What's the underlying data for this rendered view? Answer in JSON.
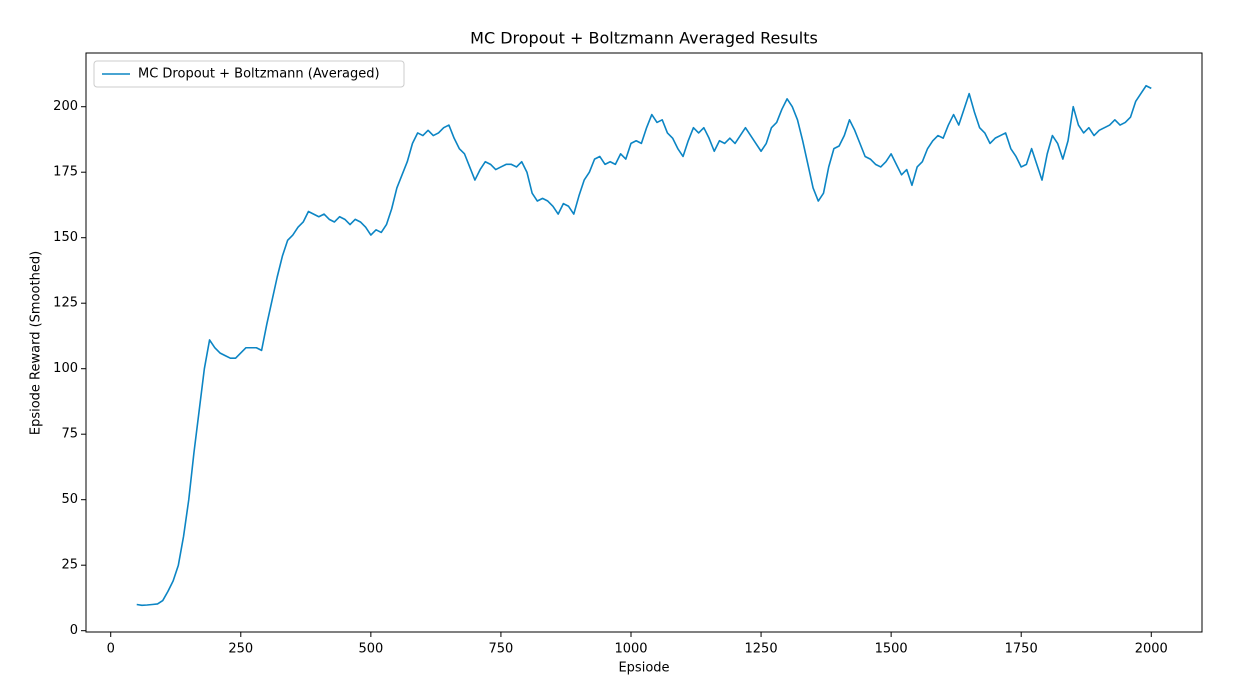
{
  "chart_data": {
    "type": "line",
    "title": "MC Dropout + Boltzmann Averaged Results",
    "xlabel": "Epsiode",
    "ylabel": "Epsiode Reward (Smoothed)",
    "legend": "upper left",
    "grid": false,
    "xlim": [
      -47.5,
      2097.5
    ],
    "ylim": [
      -0.5,
      220.5
    ],
    "xticks": [
      0,
      250,
      500,
      750,
      1000,
      1250,
      1500,
      1750,
      2000
    ],
    "yticks": [
      0,
      25,
      50,
      75,
      100,
      125,
      150,
      175,
      200
    ],
    "x": [
      50,
      60,
      70,
      80,
      90,
      100,
      110,
      120,
      130,
      140,
      150,
      160,
      170,
      180,
      190,
      200,
      210,
      220,
      230,
      240,
      250,
      260,
      270,
      280,
      290,
      300,
      310,
      320,
      330,
      340,
      350,
      360,
      370,
      380,
      390,
      400,
      410,
      420,
      430,
      440,
      450,
      460,
      470,
      480,
      490,
      500,
      510,
      520,
      530,
      540,
      550,
      560,
      570,
      580,
      590,
      600,
      610,
      620,
      630,
      640,
      650,
      660,
      670,
      680,
      690,
      700,
      710,
      720,
      730,
      740,
      750,
      760,
      770,
      780,
      790,
      800,
      810,
      820,
      830,
      840,
      850,
      860,
      870,
      880,
      890,
      900,
      910,
      920,
      930,
      940,
      950,
      960,
      970,
      980,
      990,
      1000,
      1010,
      1020,
      1030,
      1040,
      1050,
      1060,
      1070,
      1080,
      1090,
      1100,
      1110,
      1120,
      1130,
      1140,
      1150,
      1160,
      1170,
      1180,
      1190,
      1200,
      1210,
      1220,
      1230,
      1240,
      1250,
      1260,
      1270,
      1280,
      1290,
      1300,
      1310,
      1320,
      1330,
      1340,
      1350,
      1360,
      1370,
      1380,
      1390,
      1400,
      1410,
      1420,
      1430,
      1440,
      1450,
      1460,
      1470,
      1480,
      1490,
      1500,
      1510,
      1520,
      1530,
      1540,
      1550,
      1560,
      1570,
      1580,
      1590,
      1600,
      1610,
      1620,
      1630,
      1640,
      1650,
      1660,
      1670,
      1680,
      1690,
      1700,
      1710,
      1720,
      1730,
      1740,
      1750,
      1760,
      1770,
      1780,
      1790,
      1800,
      1810,
      1820,
      1830,
      1840,
      1850,
      1860,
      1870,
      1880,
      1890,
      1900,
      1910,
      1920,
      1930,
      1940,
      1950,
      1960,
      1970,
      1980,
      1990,
      2000
    ],
    "series": [
      {
        "name": "MC Dropout + Boltzmann (Averaged)",
        "color": "#0c85c4",
        "values": [
          10,
          9.7,
          9.8,
          10,
          10.2,
          11.5,
          15,
          19,
          25,
          36,
          50,
          68,
          84,
          100,
          111,
          108,
          106,
          105,
          104,
          104,
          106,
          108,
          108,
          108,
          107,
          117,
          126,
          135,
          143,
          149,
          151,
          154,
          156,
          160,
          159,
          158,
          159,
          157,
          156,
          158,
          157,
          155,
          157,
          156,
          154,
          151,
          153,
          152,
          155,
          161,
          169,
          174,
          179,
          186,
          190,
          189,
          191,
          189,
          190,
          192,
          193,
          188,
          184,
          182,
          177,
          172,
          176,
          179,
          178,
          176,
          177,
          178,
          178,
          177,
          179,
          175,
          167,
          164,
          165,
          164,
          162,
          159,
          163,
          162,
          159,
          166,
          172,
          175,
          180,
          181,
          178,
          179,
          178,
          182,
          180,
          186,
          187,
          186,
          192,
          197,
          194,
          195,
          190,
          188,
          184,
          181,
          187,
          192,
          190,
          192,
          188,
          183,
          187,
          186,
          188,
          186,
          189,
          192,
          189,
          186,
          183,
          186,
          192,
          194,
          199,
          203,
          200,
          195,
          187,
          178,
          169,
          164,
          167,
          177,
          184,
          185,
          189,
          195,
          191,
          186,
          181,
          180,
          178,
          177,
          179,
          182,
          178,
          174,
          176,
          170,
          177,
          179,
          184,
          187,
          189,
          188,
          193,
          197,
          193,
          199,
          205,
          198,
          192,
          190,
          186,
          188,
          189,
          190,
          184,
          181,
          177,
          178,
          184,
          178,
          172,
          182,
          189,
          186,
          180,
          187,
          200,
          193,
          190,
          192,
          189,
          191,
          192,
          193,
          195,
          193,
          194,
          196,
          202,
          205,
          208,
          207
        ]
      }
    ]
  }
}
